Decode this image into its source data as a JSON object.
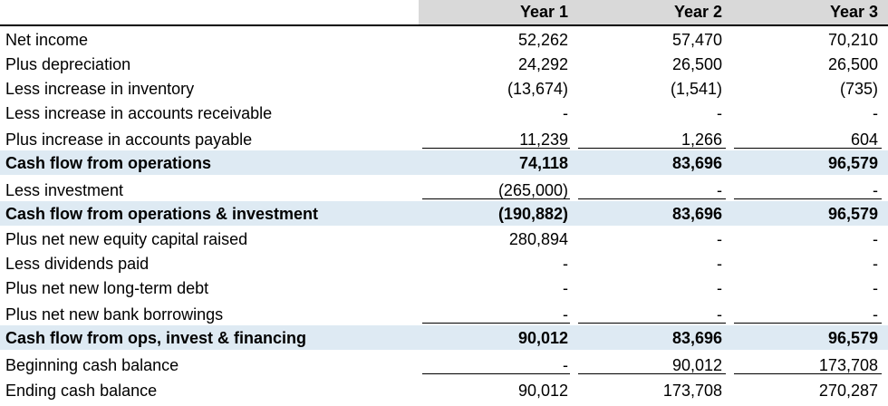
{
  "header": {
    "year1": "Year 1",
    "year2": "Year 2",
    "year3": "Year 3"
  },
  "rows": [
    {
      "label": "Net income",
      "y1": "52,262",
      "y2": "57,470",
      "y3": "70,210"
    },
    {
      "label": "Plus depreciation",
      "y1": "24,292",
      "y2": "26,500",
      "y3": "26,500"
    },
    {
      "label": "Less increase in inventory",
      "y1": "(13,674)",
      "y2": "(1,541)",
      "y3": "(735)"
    },
    {
      "label": "Less increase in accounts receivable",
      "y1": "-",
      "y2": "-",
      "y3": "-"
    },
    {
      "label": "Plus increase in accounts payable",
      "y1": "11,239",
      "y2": "1,266",
      "y3": "604"
    },
    {
      "label": "Cash flow from operations",
      "y1": "74,118",
      "y2": "83,696",
      "y3": "96,579"
    },
    {
      "label": "Less investment",
      "y1": "(265,000)",
      "y2": "-",
      "y3": "-"
    },
    {
      "label": "Cash flow from operations & investment",
      "y1": "(190,882)",
      "y2": "83,696",
      "y3": "96,579"
    },
    {
      "label": "Plus net new equity capital raised",
      "y1": "280,894",
      "y2": "-",
      "y3": "-"
    },
    {
      "label": "Less dividends paid",
      "y1": "-",
      "y2": "-",
      "y3": "-"
    },
    {
      "label": "Plus net new long-term debt",
      "y1": "-",
      "y2": "-",
      "y3": "-"
    },
    {
      "label": "Plus net new bank borrowings",
      "y1": "-",
      "y2": "-",
      "y3": "-"
    },
    {
      "label": "Cash flow from ops, invest & financing",
      "y1": "90,012",
      "y2": "83,696",
      "y3": "96,579"
    },
    {
      "label": "Beginning cash balance",
      "y1": "-",
      "y2": "90,012",
      "y3": "173,708"
    },
    {
      "label": "Ending cash balance",
      "y1": "90,012",
      "y2": "173,708",
      "y3": "270,287"
    }
  ],
  "colors": {
    "header_fill": "#d9d9d9",
    "highlight_fill": "#deeaf3"
  }
}
